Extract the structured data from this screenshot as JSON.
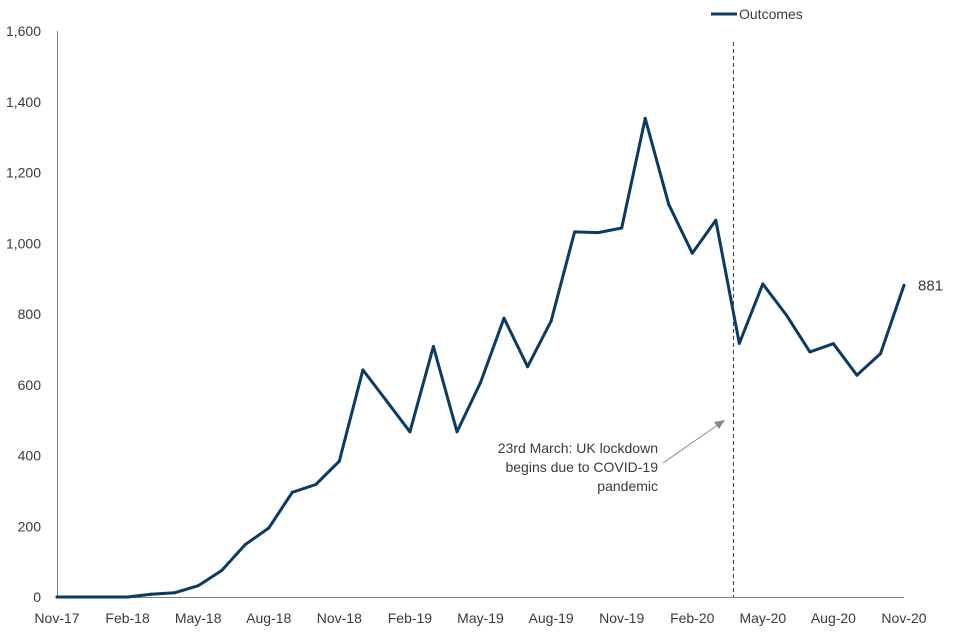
{
  "chart_data": {
    "type": "line",
    "title": "",
    "xlabel": "",
    "ylabel": "",
    "ylim": [
      0,
      1600
    ],
    "yticks": [
      0,
      200,
      400,
      600,
      800,
      1000,
      1200,
      1400,
      1600
    ],
    "ytick_labels": [
      "0",
      "200",
      "400",
      "600",
      "800",
      "1,000",
      "1,200",
      "1,400",
      "1,600"
    ],
    "xtick_labels": [
      "Nov-17",
      "Feb-18",
      "May-18",
      "Aug-18",
      "Nov-18",
      "Feb-19",
      "May-19",
      "Aug-19",
      "Nov-19",
      "Feb-20",
      "May-20",
      "Aug-20",
      "Nov-20"
    ],
    "x": [
      "Nov-17",
      "Dec-17",
      "Jan-18",
      "Feb-18",
      "Mar-18",
      "Apr-18",
      "May-18",
      "Jun-18",
      "Jul-18",
      "Aug-18",
      "Sep-18",
      "Oct-18",
      "Nov-18",
      "Dec-18",
      "Jan-19",
      "Feb-19",
      "Mar-19",
      "Apr-19",
      "May-19",
      "Jun-19",
      "Jul-19",
      "Aug-19",
      "Sep-19",
      "Oct-19",
      "Nov-19",
      "Dec-19",
      "Jan-20",
      "Feb-20",
      "Mar-20",
      "Apr-20",
      "May-20",
      "Jun-20",
      "Jul-20",
      "Aug-20",
      "Sep-20",
      "Oct-20",
      "Nov-20"
    ],
    "series": [
      {
        "name": "Outcomes",
        "color": "#0b3a62",
        "values": [
          0,
          0,
          0,
          0,
          8,
          12,
          32,
          75,
          148,
          195,
          296,
          318,
          384,
          642,
          555,
          467,
          708,
          467,
          606,
          788,
          651,
          780,
          1032,
          1030,
          1043,
          1353,
          1110,
          972,
          1065,
          717,
          885,
          797,
          693,
          716,
          627,
          688,
          881
        ]
      }
    ],
    "legend": {
      "position": "top-right",
      "label": "Outcomes"
    },
    "end_label": "881",
    "event_line": {
      "x": "Mar-20"
    },
    "annotation": {
      "lines": [
        "23rd March: UK lockdown",
        "begins due to COVID-19",
        "pandemic"
      ]
    },
    "grid": false
  }
}
